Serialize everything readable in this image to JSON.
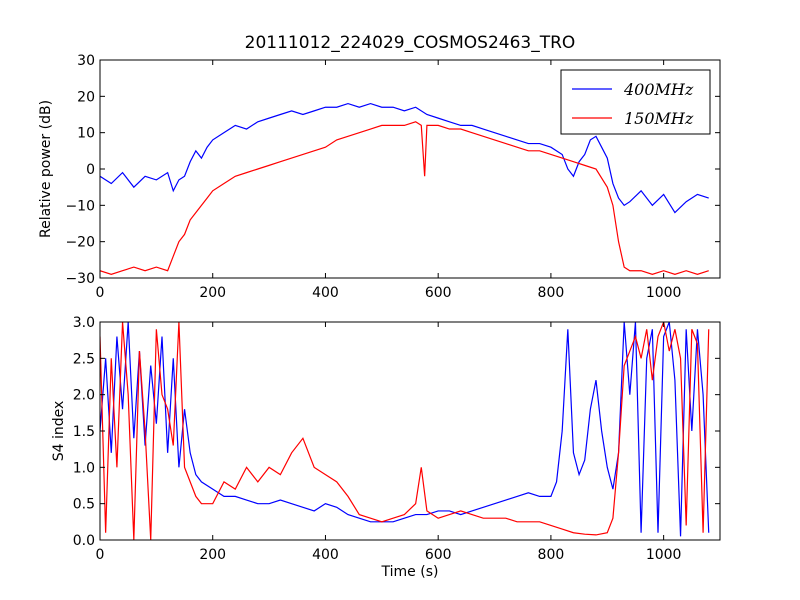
{
  "title": "20111012_224029_COSMOS2463_TRO",
  "colors": {
    "series_400": "#0000ff",
    "series_150": "#ff0000",
    "axis": "#000000"
  },
  "chart_data": [
    {
      "type": "line",
      "ylabel": "Relative power (dB)",
      "xlabel": "",
      "xlim": [
        0,
        1100
      ],
      "ylim": [
        -30,
        30
      ],
      "xticks": [
        0,
        200,
        400,
        600,
        800,
        1000
      ],
      "yticks": [
        -30,
        -20,
        -10,
        0,
        10,
        20,
        30
      ],
      "legend_position": "top-right",
      "series": [
        {
          "name": "400MHz",
          "color": "#0000ff",
          "x": [
            0,
            20,
            40,
            60,
            80,
            100,
            120,
            130,
            140,
            150,
            160,
            170,
            180,
            190,
            200,
            220,
            240,
            260,
            280,
            300,
            320,
            340,
            360,
            380,
            400,
            420,
            440,
            460,
            480,
            500,
            520,
            540,
            560,
            580,
            600,
            620,
            640,
            660,
            680,
            700,
            720,
            740,
            760,
            780,
            800,
            820,
            830,
            840,
            850,
            860,
            870,
            880,
            890,
            900,
            910,
            920,
            930,
            940,
            960,
            980,
            1000,
            1020,
            1040,
            1060,
            1080
          ],
          "y": [
            -2,
            -4,
            -1,
            -5,
            -2,
            -3,
            -1,
            -6,
            -3,
            -2,
            2,
            5,
            3,
            6,
            8,
            10,
            12,
            11,
            13,
            14,
            15,
            16,
            15,
            16,
            17,
            17,
            18,
            17,
            18,
            17,
            17,
            16,
            17,
            15,
            14,
            13,
            12,
            12,
            11,
            10,
            9,
            8,
            7,
            7,
            6,
            4,
            0,
            -2,
            2,
            4,
            8,
            9,
            6,
            3,
            -4,
            -8,
            -10,
            -9,
            -6,
            -10,
            -7,
            -12,
            -9,
            -7,
            -8
          ]
        },
        {
          "name": "150MHz",
          "color": "#ff0000",
          "x": [
            0,
            20,
            40,
            60,
            80,
            100,
            120,
            130,
            140,
            150,
            160,
            170,
            180,
            190,
            200,
            220,
            240,
            260,
            280,
            300,
            320,
            340,
            360,
            380,
            400,
            420,
            440,
            460,
            480,
            500,
            520,
            540,
            560,
            570,
            576,
            580,
            600,
            620,
            640,
            660,
            680,
            700,
            720,
            740,
            760,
            780,
            800,
            820,
            840,
            860,
            880,
            900,
            910,
            920,
            930,
            940,
            960,
            980,
            1000,
            1020,
            1040,
            1060,
            1080
          ],
          "y": [
            -28,
            -29,
            -28,
            -27,
            -28,
            -27,
            -28,
            -24,
            -20,
            -18,
            -14,
            -12,
            -10,
            -8,
            -6,
            -4,
            -2,
            -1,
            0,
            1,
            2,
            3,
            4,
            5,
            6,
            8,
            9,
            10,
            11,
            12,
            12,
            12,
            13,
            12,
            -2,
            12,
            12,
            11,
            11,
            10,
            9,
            8,
            7,
            6,
            5,
            5,
            4,
            3,
            2,
            1,
            0,
            -5,
            -10,
            -20,
            -27,
            -28,
            -28,
            -29,
            -28,
            -29,
            -28,
            -29,
            -28
          ]
        }
      ]
    },
    {
      "type": "line",
      "ylabel": "S4 index",
      "xlabel": "Time (s)",
      "xlim": [
        0,
        1100
      ],
      "ylim": [
        0,
        3
      ],
      "xticks": [
        0,
        200,
        400,
        600,
        800,
        1000
      ],
      "yticks": [
        0.0,
        0.5,
        1.0,
        1.5,
        2.0,
        2.5,
        3.0
      ],
      "series": [
        {
          "name": "400MHz",
          "color": "#0000ff",
          "x": [
            0,
            10,
            20,
            30,
            40,
            50,
            60,
            70,
            80,
            90,
            100,
            110,
            120,
            130,
            140,
            150,
            160,
            170,
            180,
            200,
            220,
            240,
            260,
            280,
            300,
            320,
            340,
            360,
            380,
            400,
            420,
            440,
            460,
            480,
            500,
            520,
            540,
            560,
            580,
            600,
            620,
            640,
            660,
            680,
            700,
            720,
            740,
            760,
            780,
            800,
            810,
            820,
            830,
            840,
            850,
            860,
            870,
            880,
            890,
            900,
            910,
            920,
            930,
            940,
            950,
            960,
            970,
            980,
            990,
            1000,
            1010,
            1020,
            1030,
            1040,
            1050,
            1060,
            1070,
            1080
          ],
          "y": [
            1.5,
            2.5,
            1.2,
            2.8,
            1.8,
            3.0,
            1.4,
            2.6,
            1.3,
            2.4,
            1.6,
            2.8,
            1.2,
            2.5,
            1.0,
            1.8,
            1.2,
            0.9,
            0.8,
            0.7,
            0.6,
            0.6,
            0.55,
            0.5,
            0.5,
            0.55,
            0.5,
            0.45,
            0.4,
            0.5,
            0.45,
            0.35,
            0.3,
            0.25,
            0.25,
            0.25,
            0.3,
            0.35,
            0.35,
            0.4,
            0.4,
            0.35,
            0.4,
            0.45,
            0.5,
            0.55,
            0.6,
            0.65,
            0.6,
            0.6,
            0.8,
            1.5,
            2.9,
            1.2,
            0.9,
            1.1,
            1.8,
            2.2,
            1.5,
            1.0,
            0.7,
            1.2,
            3.0,
            2.0,
            3.0,
            0.1,
            2.5,
            2.9,
            0.1,
            2.8,
            3.0,
            2.2,
            0.05,
            2.9,
            1.5,
            2.9,
            2.0,
            0.1
          ]
        },
        {
          "name": "150MHz",
          "color": "#ff0000",
          "x": [
            0,
            10,
            20,
            30,
            40,
            50,
            60,
            70,
            80,
            90,
            100,
            110,
            120,
            130,
            140,
            150,
            160,
            170,
            180,
            200,
            220,
            240,
            260,
            280,
            300,
            320,
            340,
            360,
            380,
            400,
            420,
            440,
            460,
            480,
            500,
            520,
            540,
            560,
            570,
            580,
            600,
            620,
            640,
            660,
            680,
            700,
            720,
            740,
            760,
            780,
            800,
            820,
            840,
            860,
            880,
            900,
            910,
            920,
            930,
            940,
            950,
            960,
            970,
            980,
            990,
            1000,
            1010,
            1020,
            1030,
            1040,
            1050,
            1060,
            1070,
            1080
          ],
          "y": [
            2.8,
            0.1,
            2.5,
            1.0,
            3.0,
            2.0,
            0.0,
            2.6,
            1.5,
            0.0,
            2.9,
            2.0,
            1.8,
            1.3,
            3.0,
            1.0,
            0.8,
            0.6,
            0.5,
            0.5,
            0.8,
            0.7,
            1.0,
            0.8,
            1.0,
            0.9,
            1.2,
            1.4,
            1.0,
            0.9,
            0.8,
            0.6,
            0.35,
            0.3,
            0.25,
            0.3,
            0.35,
            0.5,
            1.0,
            0.4,
            0.3,
            0.35,
            0.4,
            0.35,
            0.3,
            0.3,
            0.3,
            0.25,
            0.25,
            0.25,
            0.2,
            0.15,
            0.1,
            0.08,
            0.07,
            0.1,
            0.3,
            1.2,
            2.4,
            2.6,
            2.8,
            2.5,
            2.9,
            2.2,
            2.8,
            3.0,
            2.6,
            2.9,
            2.5,
            0.2,
            2.9,
            2.7,
            0.1,
            2.9
          ]
        }
      ]
    }
  ]
}
